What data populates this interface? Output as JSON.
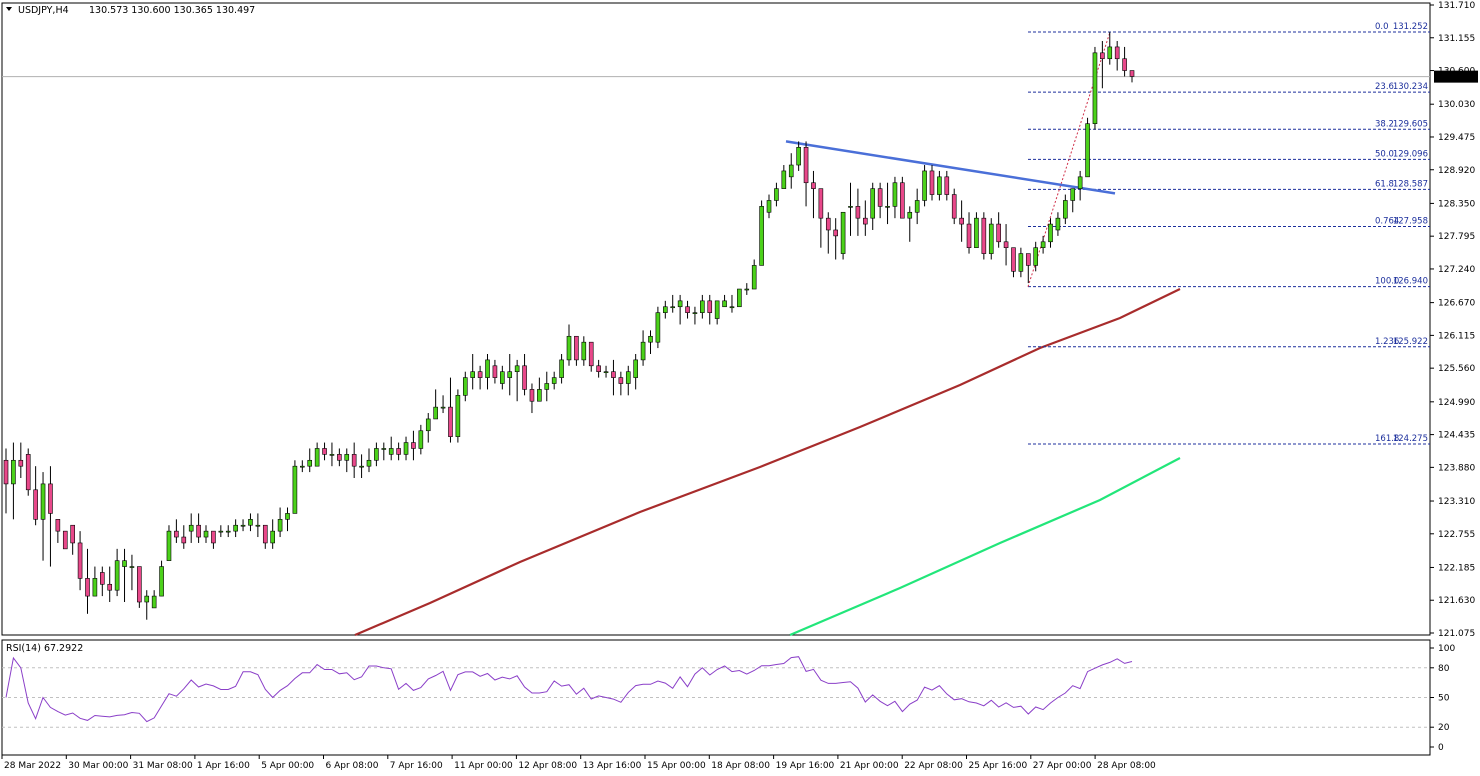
{
  "header": {
    "symbol": "USDJPY,H4",
    "ohlc": "130.573 130.600 130.365 130.497"
  },
  "current_price": "130.497",
  "price_axis": [
    "131.710",
    "131.155",
    "130.600",
    "130.030",
    "129.475",
    "128.920",
    "128.350",
    "127.795",
    "127.240",
    "126.670",
    "126.115",
    "125.560",
    "124.990",
    "124.435",
    "123.880",
    "123.310",
    "122.755",
    "122.185",
    "121.630",
    "121.075"
  ],
  "time_axis": [
    "28 Mar 2022",
    "30 Mar 00:00",
    "31 Mar 08:00",
    "1 Apr 16:00",
    "5 Apr 00:00",
    "6 Apr 08:00",
    "7 Apr 16:00",
    "11 Apr 00:00",
    "12 Apr 08:00",
    "13 Apr 16:00",
    "15 Apr 00:00",
    "18 Apr 08:00",
    "19 Apr 16:00",
    "21 Apr 00:00",
    "22 Apr 08:00",
    "25 Apr 16:00",
    "27 Apr 00:00",
    "28 Apr 08:00"
  ],
  "rsi": {
    "label": "RSI(14) 67.2922",
    "axis": [
      "100",
      "80",
      "50",
      "20",
      "0"
    ]
  },
  "fib_levels": [
    {
      "ratio": "0.0",
      "price": "131.252"
    },
    {
      "ratio": "23.6",
      "price": "130.234"
    },
    {
      "ratio": "38.2",
      "price": "129.605"
    },
    {
      "ratio": "50.0",
      "price": "129.096"
    },
    {
      "ratio": "61.8",
      "price": "128.587"
    },
    {
      "ratio": "0.764",
      "price": "127.958"
    },
    {
      "ratio": "100.0",
      "price": "126.940"
    },
    {
      "ratio": "1.236",
      "price": "125.922"
    },
    {
      "ratio": "161.8",
      "price": "124.275"
    }
  ],
  "colors": {
    "bull": "#4bd11a",
    "bear": "#e8488a",
    "ma_slow": "#a82c2c",
    "ma_fast": "#22e67a",
    "trendline": "#4a6fd8",
    "fib": "#1c2f9c",
    "rsi": "#8a3fc8"
  },
  "chart_data": {
    "type": "candlestick",
    "ylim": [
      121.075,
      131.71
    ],
    "candles": [
      [
        124.0,
        124.2,
        123.1,
        123.6
      ],
      [
        123.6,
        124.3,
        123.0,
        124.0
      ],
      [
        124.0,
        124.3,
        123.7,
        123.9
      ],
      [
        124.1,
        124.2,
        123.4,
        123.5
      ],
      [
        123.5,
        123.9,
        122.9,
        123.0
      ],
      [
        123.0,
        123.8,
        122.3,
        123.6
      ],
      [
        123.6,
        123.9,
        122.2,
        123.1
      ],
      [
        123.0,
        123.0,
        122.6,
        122.8
      ],
      [
        122.8,
        122.8,
        122.6,
        122.5
      ],
      [
        122.9,
        122.9,
        122.4,
        122.6
      ],
      [
        122.6,
        122.8,
        121.8,
        122.0
      ],
      [
        122.0,
        122.5,
        121.4,
        121.7
      ],
      [
        121.7,
        122.2,
        121.7,
        122.0
      ],
      [
        122.1,
        122.2,
        121.7,
        121.9
      ],
      [
        121.9,
        122.2,
        121.6,
        121.8
      ],
      [
        121.8,
        122.5,
        121.7,
        122.3
      ],
      [
        122.2,
        122.5,
        121.6,
        122.3
      ],
      [
        122.2,
        122.4,
        121.8,
        122.2
      ],
      [
        122.2,
        122.2,
        121.5,
        121.6
      ],
      [
        121.6,
        121.8,
        121.3,
        121.7
      ],
      [
        121.5,
        121.8,
        121.5,
        121.7
      ],
      [
        121.7,
        122.3,
        121.7,
        122.2
      ],
      [
        122.3,
        122.9,
        122.3,
        122.8
      ],
      [
        122.8,
        123.0,
        122.6,
        122.7
      ],
      [
        122.7,
        122.9,
        122.5,
        122.6
      ],
      [
        122.8,
        123.1,
        122.6,
        122.9
      ],
      [
        122.9,
        123.1,
        122.6,
        122.7
      ],
      [
        122.7,
        122.9,
        122.6,
        122.8
      ],
      [
        122.8,
        122.8,
        122.5,
        122.6
      ],
      [
        122.8,
        122.9,
        122.7,
        122.8
      ],
      [
        122.8,
        122.9,
        122.7,
        122.8
      ],
      [
        122.8,
        123.0,
        122.7,
        122.9
      ],
      [
        122.9,
        123.0,
        122.8,
        122.9
      ],
      [
        122.9,
        123.1,
        122.8,
        123.0
      ],
      [
        122.9,
        123.1,
        122.7,
        122.9
      ],
      [
        122.9,
        122.9,
        122.5,
        122.6
      ],
      [
        122.6,
        123.0,
        122.5,
        122.8
      ],
      [
        122.8,
        123.2,
        122.7,
        123.0
      ],
      [
        123.0,
        123.2,
        122.8,
        123.1
      ],
      [
        123.1,
        124.0,
        123.1,
        123.9
      ],
      [
        123.9,
        124.0,
        123.8,
        123.9
      ],
      [
        123.9,
        124.2,
        123.8,
        124.0
      ],
      [
        123.9,
        124.3,
        123.9,
        124.2
      ],
      [
        124.2,
        124.3,
        124.0,
        124.1
      ],
      [
        124.1,
        124.3,
        123.9,
        124.1
      ],
      [
        124.1,
        124.2,
        123.9,
        124.0
      ],
      [
        124.0,
        124.2,
        123.8,
        124.1
      ],
      [
        124.1,
        124.3,
        123.7,
        123.9
      ],
      [
        123.9,
        124.1,
        123.7,
        123.9
      ],
      [
        123.9,
        124.2,
        123.8,
        124.0
      ],
      [
        124.0,
        124.3,
        123.9,
        124.2
      ],
      [
        124.2,
        124.3,
        124.0,
        124.2
      ],
      [
        124.1,
        124.4,
        124.0,
        124.2
      ],
      [
        124.2,
        124.3,
        124.0,
        124.1
      ],
      [
        124.1,
        124.4,
        124.0,
        124.3
      ],
      [
        124.3,
        124.5,
        124.0,
        124.2
      ],
      [
        124.2,
        124.6,
        124.1,
        124.5
      ],
      [
        124.5,
        124.8,
        124.3,
        124.7
      ],
      [
        124.7,
        125.2,
        124.7,
        124.9
      ],
      [
        124.9,
        125.1,
        124.8,
        124.9
      ],
      [
        124.9,
        125.4,
        124.3,
        124.4
      ],
      [
        124.4,
        125.2,
        124.3,
        125.1
      ],
      [
        125.1,
        125.5,
        125.0,
        125.4
      ],
      [
        125.4,
        125.8,
        125.2,
        125.5
      ],
      [
        125.5,
        125.6,
        125.2,
        125.4
      ],
      [
        125.4,
        125.8,
        125.2,
        125.7
      ],
      [
        125.6,
        125.7,
        125.3,
        125.4
      ],
      [
        125.3,
        125.6,
        125.2,
        125.5
      ],
      [
        125.4,
        125.8,
        125.1,
        125.5
      ],
      [
        125.5,
        125.7,
        125.0,
        125.6
      ],
      [
        125.6,
        125.8,
        125.1,
        125.2
      ],
      [
        125.2,
        125.3,
        124.8,
        125.0
      ],
      [
        125.0,
        125.4,
        125.0,
        125.2
      ],
      [
        125.2,
        125.5,
        125.0,
        125.3
      ],
      [
        125.3,
        125.5,
        125.2,
        125.4
      ],
      [
        125.4,
        125.8,
        125.3,
        125.7
      ],
      [
        125.7,
        126.3,
        125.6,
        126.1
      ],
      [
        126.1,
        126.1,
        125.6,
        125.7
      ],
      [
        125.7,
        126.1,
        125.6,
        126.0
      ],
      [
        126.0,
        126.0,
        125.5,
        125.6
      ],
      [
        125.6,
        125.7,
        125.4,
        125.5
      ],
      [
        125.5,
        125.6,
        125.4,
        125.5
      ],
      [
        125.5,
        125.7,
        125.1,
        125.4
      ],
      [
        125.4,
        125.5,
        125.1,
        125.3
      ],
      [
        125.3,
        125.6,
        125.1,
        125.5
      ],
      [
        125.4,
        125.8,
        125.2,
        125.7
      ],
      [
        125.7,
        126.2,
        125.6,
        126.0
      ],
      [
        126.0,
        126.2,
        125.8,
        126.1
      ],
      [
        126.0,
        126.6,
        125.9,
        126.5
      ],
      [
        126.5,
        126.7,
        126.4,
        126.6
      ],
      [
        126.6,
        126.8,
        126.5,
        126.6
      ],
      [
        126.6,
        126.8,
        126.3,
        126.7
      ],
      [
        126.6,
        126.7,
        126.4,
        126.5
      ],
      [
        126.5,
        126.6,
        126.3,
        126.5
      ],
      [
        126.5,
        126.8,
        126.4,
        126.7
      ],
      [
        126.7,
        126.8,
        126.3,
        126.5
      ],
      [
        126.4,
        126.7,
        126.3,
        126.7
      ],
      [
        126.6,
        126.8,
        126.6,
        126.7
      ],
      [
        126.6,
        126.8,
        126.5,
        126.6
      ],
      [
        126.6,
        126.9,
        126.6,
        126.9
      ],
      [
        126.9,
        127.0,
        126.8,
        126.9
      ],
      [
        126.9,
        127.4,
        126.9,
        127.3
      ],
      [
        127.3,
        128.4,
        127.3,
        128.3
      ],
      [
        128.2,
        128.5,
        128.1,
        128.4
      ],
      [
        128.4,
        128.7,
        128.3,
        128.6
      ],
      [
        128.6,
        129.0,
        128.6,
        128.9
      ],
      [
        128.8,
        129.2,
        128.6,
        129.0
      ],
      [
        129.0,
        129.4,
        128.9,
        129.3
      ],
      [
        129.3,
        129.4,
        128.3,
        128.7
      ],
      [
        128.7,
        128.9,
        128.1,
        128.6
      ],
      [
        128.6,
        128.6,
        127.6,
        128.1
      ],
      [
        128.1,
        128.2,
        127.5,
        127.9
      ],
      [
        127.9,
        128.1,
        127.4,
        127.8
      ],
      [
        127.5,
        128.2,
        127.4,
        128.2
      ],
      [
        128.3,
        128.7,
        127.8,
        128.3
      ],
      [
        128.3,
        128.6,
        127.8,
        128.1
      ],
      [
        128.1,
        128.4,
        127.8,
        128.0
      ],
      [
        128.1,
        128.7,
        127.9,
        128.6
      ],
      [
        128.6,
        128.7,
        128.1,
        128.3
      ],
      [
        128.3,
        128.7,
        128.0,
        128.3
      ],
      [
        128.3,
        128.8,
        128.1,
        128.7
      ],
      [
        128.7,
        128.8,
        128.2,
        128.1
      ],
      [
        128.1,
        128.3,
        127.7,
        128.2
      ],
      [
        128.2,
        128.6,
        128.0,
        128.4
      ],
      [
        128.4,
        129.0,
        128.3,
        128.9
      ],
      [
        128.9,
        129.0,
        128.4,
        128.5
      ],
      [
        128.5,
        128.9,
        128.4,
        128.8
      ],
      [
        128.8,
        128.9,
        128.4,
        128.5
      ],
      [
        128.5,
        128.6,
        128.0,
        128.1
      ],
      [
        128.1,
        128.4,
        127.7,
        128.0
      ],
      [
        128.0,
        128.2,
        127.5,
        127.6
      ],
      [
        127.6,
        128.2,
        127.6,
        128.1
      ],
      [
        128.1,
        128.2,
        127.4,
        127.5
      ],
      [
        127.5,
        128.1,
        127.4,
        128.0
      ],
      [
        128.0,
        128.2,
        127.6,
        127.7
      ],
      [
        127.7,
        128.0,
        127.3,
        127.6
      ],
      [
        127.6,
        127.6,
        127.1,
        127.2
      ],
      [
        127.2,
        127.6,
        127.1,
        127.5
      ],
      [
        127.5,
        127.5,
        127.0,
        127.3
      ],
      [
        127.3,
        127.7,
        127.2,
        127.6
      ],
      [
        127.6,
        127.8,
        127.5,
        127.7
      ],
      [
        127.7,
        128.1,
        127.6,
        128.0
      ],
      [
        127.9,
        128.2,
        127.8,
        128.1
      ],
      [
        128.1,
        128.5,
        128.0,
        128.4
      ],
      [
        128.4,
        128.6,
        128.2,
        128.6
      ],
      [
        128.6,
        128.9,
        128.4,
        128.8
      ],
      [
        128.8,
        129.8,
        128.8,
        129.7
      ],
      [
        129.7,
        131.0,
        129.6,
        130.9
      ],
      [
        130.9,
        131.1,
        130.3,
        130.8
      ],
      [
        130.8,
        131.25,
        130.7,
        131.0
      ],
      [
        131.0,
        131.1,
        130.6,
        130.8
      ],
      [
        130.8,
        131.0,
        130.5,
        130.6
      ],
      [
        130.6,
        130.6,
        130.4,
        130.5
      ]
    ]
  }
}
